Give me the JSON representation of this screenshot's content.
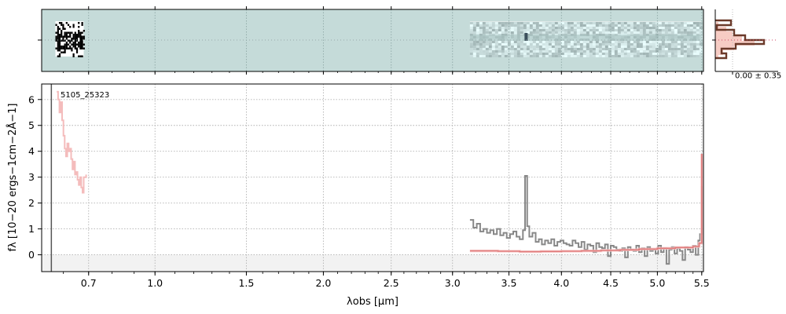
{
  "chart_data": [
    {
      "type": "heatmap",
      "panel": "2d-spectrum",
      "description_colormap": "teal-gray",
      "background_color": "#c5dbd9",
      "hlines_at": [
        0.0
      ],
      "blocks": [
        {
          "x_range": [
            0.57,
            0.68
          ],
          "style": "noisy-black-white"
        },
        {
          "x_range": [
            3.15,
            5.5
          ],
          "style": "faint-trace"
        }
      ]
    },
    {
      "type": "line",
      "panel": "1d-spectrum",
      "title": "",
      "annotation": "5105_25323",
      "xlabel": "λobs [μm]",
      "ylabel": "fλ [10−20 ergs−1cm−2Å−1]",
      "xscale": "sqrt",
      "xlim": [
        0.52,
        5.52
      ],
      "ylim": [
        -0.65,
        6.6
      ],
      "xticks": [
        {
          "v": 0.7,
          "label": "0.7"
        },
        {
          "v": 1.0,
          "label": "1.0"
        },
        {
          "v": 1.5,
          "label": "1.5"
        },
        {
          "v": 2.0,
          "label": "2.0"
        },
        {
          "v": 2.5,
          "label": "2.5"
        },
        {
          "v": 3.0,
          "label": "3.0"
        },
        {
          "v": 3.5,
          "label": "3.5"
        },
        {
          "v": 4.0,
          "label": "4.0"
        },
        {
          "v": 4.5,
          "label": "4.5"
        },
        {
          "v": 5.0,
          "label": "5.0"
        },
        {
          "v": 5.5,
          "label": "5.5"
        }
      ],
      "yticks": [
        {
          "v": 0,
          "label": "0"
        },
        {
          "v": 1,
          "label": "1"
        },
        {
          "v": 2,
          "label": "2"
        },
        {
          "v": 3,
          "label": "3"
        },
        {
          "v": 4,
          "label": "4"
        },
        {
          "v": 5,
          "label": "5"
        },
        {
          "v": 6,
          "label": "6"
        }
      ],
      "grid": true,
      "colors": {
        "data": "#888888",
        "model": "#f4bcbc",
        "model_line": "#e07a7a",
        "zero_band": "#f2f2f2"
      },
      "vline_x": 0.555,
      "series": [
        {
          "role": "model-short",
          "x": [
            0.575,
            0.58,
            0.585,
            0.59,
            0.595,
            0.6,
            0.605,
            0.61,
            0.615,
            0.62,
            0.625,
            0.63,
            0.635,
            0.64,
            0.645,
            0.65,
            0.655,
            0.66,
            0.665,
            0.67,
            0.675,
            0.68,
            0.69
          ],
          "y": [
            6.3,
            6.0,
            5.5,
            5.9,
            5.2,
            4.6,
            4.1,
            3.8,
            4.3,
            4.0,
            4.1,
            3.7,
            3.3,
            3.6,
            3.1,
            3.2,
            2.9,
            2.7,
            3.0,
            2.6,
            2.4,
            3.0,
            3.1
          ]
        },
        {
          "role": "data",
          "x": [
            3.15,
            3.18,
            3.21,
            3.24,
            3.27,
            3.3,
            3.33,
            3.36,
            3.39,
            3.42,
            3.45,
            3.48,
            3.51,
            3.54,
            3.57,
            3.6,
            3.63,
            3.65,
            3.67,
            3.69,
            3.72,
            3.75,
            3.78,
            3.81,
            3.84,
            3.87,
            3.9,
            3.93,
            3.96,
            3.99,
            4.02,
            4.05,
            4.08,
            4.11,
            4.14,
            4.17,
            4.2,
            4.23,
            4.26,
            4.29,
            4.32,
            4.35,
            4.38,
            4.41,
            4.44,
            4.47,
            4.5,
            4.53,
            4.56,
            4.59,
            4.62,
            4.65,
            4.68,
            4.71,
            4.74,
            4.77,
            4.8,
            4.83,
            4.86,
            4.89,
            4.92,
            4.95,
            4.98,
            5.01,
            5.04,
            5.07,
            5.1,
            5.13,
            5.16,
            5.19,
            5.22,
            5.25,
            5.28,
            5.31,
            5.34,
            5.37,
            5.4,
            5.43,
            5.46,
            5.48,
            5.5
          ],
          "y": [
            1.35,
            1.05,
            1.2,
            0.9,
            1.0,
            0.85,
            0.95,
            0.8,
            1.0,
            0.75,
            0.85,
            0.65,
            0.8,
            0.9,
            0.7,
            0.6,
            0.95,
            3.05,
            1.1,
            0.7,
            0.85,
            0.5,
            0.6,
            0.4,
            0.55,
            0.45,
            0.6,
            0.35,
            0.5,
            0.55,
            0.45,
            0.4,
            0.35,
            0.55,
            0.45,
            0.3,
            0.5,
            0.2,
            0.4,
            0.35,
            0.1,
            0.45,
            0.3,
            0.25,
            0.4,
            -0.05,
            0.35,
            0.3,
            0.2,
            0.15,
            0.25,
            -0.1,
            0.3,
            0.2,
            0.15,
            0.35,
            0.1,
            0.25,
            -0.05,
            0.3,
            0.15,
            0.2,
            0.05,
            0.35,
            0.1,
            0.25,
            -0.35,
            0.2,
            0.3,
            0.05,
            0.25,
            0.15,
            -0.2,
            0.3,
            0.2,
            0.1,
            0.35,
            0.0,
            0.55,
            0.8,
            2.65
          ]
        },
        {
          "role": "model-long",
          "x": [
            3.15,
            3.4,
            3.6,
            3.8,
            4.0,
            4.2,
            4.4,
            4.6,
            4.8,
            5.0,
            5.2,
            5.4,
            5.47,
            5.5
          ],
          "y": [
            0.15,
            0.14,
            0.12,
            0.13,
            0.14,
            0.15,
            0.17,
            0.19,
            0.22,
            0.25,
            0.28,
            0.32,
            0.45,
            3.9
          ]
        }
      ]
    },
    {
      "type": "area",
      "panel": "profile",
      "annotation": "0.00 ± 0.35"
    }
  ]
}
